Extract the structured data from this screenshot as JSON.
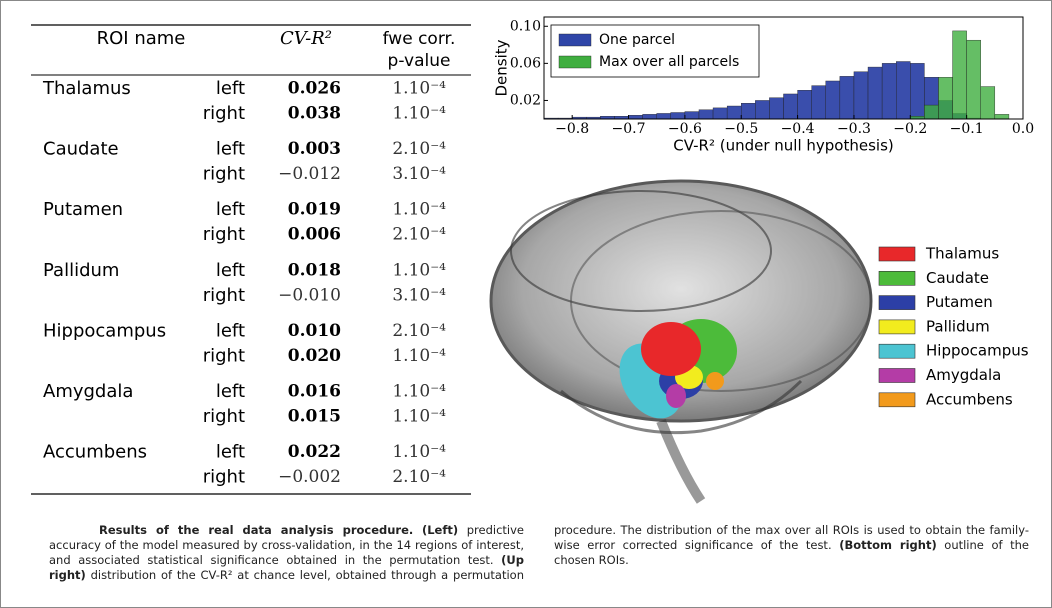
{
  "table": {
    "headers": [
      "ROI name",
      "CV-R²",
      "fwe corr. p-value"
    ],
    "groups": [
      {
        "name": "Thalamus",
        "rows": [
          {
            "side": "left",
            "value": "0.026",
            "p": "1.10⁻⁴",
            "bold": true
          },
          {
            "side": "right",
            "value": "0.038",
            "p": "1.10⁻⁴",
            "bold": true
          }
        ]
      },
      {
        "name": "Caudate",
        "rows": [
          {
            "side": "left",
            "value": "0.003",
            "p": "2.10⁻⁴",
            "bold": true
          },
          {
            "side": "right",
            "value": "−0.012",
            "p": "3.10⁻⁴",
            "bold": false
          }
        ]
      },
      {
        "name": "Putamen",
        "rows": [
          {
            "side": "left",
            "value": "0.019",
            "p": "1.10⁻⁴",
            "bold": true
          },
          {
            "side": "right",
            "value": "0.006",
            "p": "2.10⁻⁴",
            "bold": true
          }
        ]
      },
      {
        "name": "Pallidum",
        "rows": [
          {
            "side": "left",
            "value": "0.018",
            "p": "1.10⁻⁴",
            "bold": true
          },
          {
            "side": "right",
            "value": "−0.010",
            "p": "3.10⁻⁴",
            "bold": false
          }
        ]
      },
      {
        "name": "Hippocampus",
        "rows": [
          {
            "side": "left",
            "value": "0.010",
            "p": "2.10⁻⁴",
            "bold": true
          },
          {
            "side": "right",
            "value": "0.020",
            "p": "1.10⁻⁴",
            "bold": true
          }
        ]
      },
      {
        "name": "Amygdala",
        "rows": [
          {
            "side": "left",
            "value": "0.016",
            "p": "1.10⁻⁴",
            "bold": true
          },
          {
            "side": "right",
            "value": "0.015",
            "p": "1.10⁻⁴",
            "bold": true
          }
        ]
      },
      {
        "name": "Accumbens",
        "rows": [
          {
            "side": "left",
            "value": "0.022",
            "p": "1.10⁻⁴",
            "bold": true
          },
          {
            "side": "right",
            "value": "−0.002",
            "p": "2.10⁻⁴",
            "bold": false
          }
        ]
      }
    ]
  },
  "chart_data": {
    "type": "histogram",
    "x_label": "CV-R²  (under null hypothesis)",
    "y_label": "Density",
    "bins": [
      -0.85,
      -0.825,
      -0.8,
      -0.775,
      -0.75,
      -0.725,
      -0.7,
      -0.675,
      -0.65,
      -0.625,
      -0.6,
      -0.575,
      -0.55,
      -0.525,
      -0.5,
      -0.475,
      -0.45,
      -0.425,
      -0.4,
      -0.375,
      -0.35,
      -0.325,
      -0.3,
      -0.275,
      -0.25,
      -0.225,
      -0.2,
      -0.175,
      -0.15,
      -0.125,
      -0.1,
      -0.075,
      -0.05,
      -0.025,
      0
    ],
    "series": [
      {
        "name": "One parcel",
        "color": "#2f45a8",
        "values": [
          0.001,
          0.001,
          0.002,
          0.002,
          0.003,
          0.003,
          0.004,
          0.005,
          0.006,
          0.007,
          0.008,
          0.01,
          0.012,
          0.014,
          0.017,
          0.02,
          0.023,
          0.027,
          0.031,
          0.036,
          0.041,
          0.046,
          0.051,
          0.056,
          0.06,
          0.062,
          0.06,
          0.045,
          0.02,
          0.006,
          0.001,
          0,
          0,
          0
        ]
      },
      {
        "name": "Max over all parcels",
        "color": "#3fae3f",
        "values": [
          0,
          0,
          0,
          0,
          0,
          0,
          0,
          0,
          0,
          0,
          0,
          0,
          0,
          0,
          0,
          0,
          0,
          0,
          0,
          0,
          0,
          0,
          0,
          0,
          0,
          0,
          0.003,
          0.015,
          0.045,
          0.095,
          0.085,
          0.035,
          0.005,
          0
        ]
      }
    ],
    "xlim": [
      -0.85,
      0
    ],
    "ylim": [
      0,
      0.11
    ],
    "xticks": [
      {
        "value": -0.8,
        "label": "−0.8"
      },
      {
        "value": -0.7,
        "label": "−0.7"
      },
      {
        "value": -0.6,
        "label": "−0.6"
      },
      {
        "value": -0.5,
        "label": "−0.5"
      },
      {
        "value": -0.4,
        "label": "−0.4"
      },
      {
        "value": -0.3,
        "label": "−0.3"
      },
      {
        "value": -0.2,
        "label": "−0.2"
      },
      {
        "value": -0.1,
        "label": "−0.1"
      },
      {
        "value": 0,
        "label": "0.0"
      }
    ],
    "yticks": [
      0.02,
      0.06,
      {
        "value": 0.1,
        "label": "0.10"
      }
    ],
    "legend": "upper left"
  },
  "roi_legend": [
    {
      "name": "Thalamus",
      "color": "#e8282a"
    },
    {
      "name": "Caudate",
      "color": "#4cbb3a"
    },
    {
      "name": "Putamen",
      "color": "#2c3fa6"
    },
    {
      "name": "Pallidum",
      "color": "#f2ec1e"
    },
    {
      "name": "Hippocampus",
      "color": "#4cc4d2"
    },
    {
      "name": "Amygdala",
      "color": "#b43ca6"
    },
    {
      "name": "Accumbens",
      "color": "#f29a1c"
    }
  ],
  "caption": [
    {
      "text": "Results of the real data analysis procedure.",
      "bold": true
    },
    {
      "text": " ",
      "bold": false
    },
    {
      "text": "(Left)",
      "bold": true
    },
    {
      "text": " predictive accuracy of the model measured by cross-validation, in the 14 regions of interest, and associated statistical significance obtained in the permutation test. ",
      "bold": false
    },
    {
      "text": "(Up right)",
      "bold": true
    },
    {
      "text": " distribution of the CV-R² at chance level, obtained through a permutation procedure. The distribution of the max over all ROIs is used to obtain the family-wise error corrected significance of the test. ",
      "bold": false
    },
    {
      "text": "(Bottom right)",
      "bold": true
    },
    {
      "text": " outline of the chosen ROIs.",
      "bold": false
    }
  ]
}
